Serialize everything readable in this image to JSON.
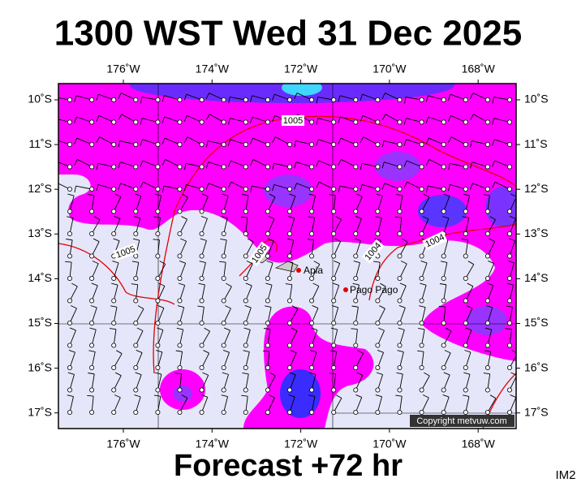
{
  "title": "1300 WST Wed 31 Dec 2025",
  "lon_labels": [
    "176˚W",
    "174˚W",
    "172˚W",
    "170˚W",
    "168˚W"
  ],
  "lat_labels": [
    "10˚S",
    "11˚S",
    "12˚S",
    "13˚S",
    "14˚S",
    "15˚S",
    "16˚S",
    "17˚S"
  ],
  "isobar_labels": [
    "1005",
    "1005",
    "1005",
    "1004",
    "1004"
  ],
  "places": [
    "Apia",
    "Pago Pago"
  ],
  "copyright": "Copyright metvuw.com",
  "forecast": "Forecast +72 hr",
  "image_id": "IM2"
}
